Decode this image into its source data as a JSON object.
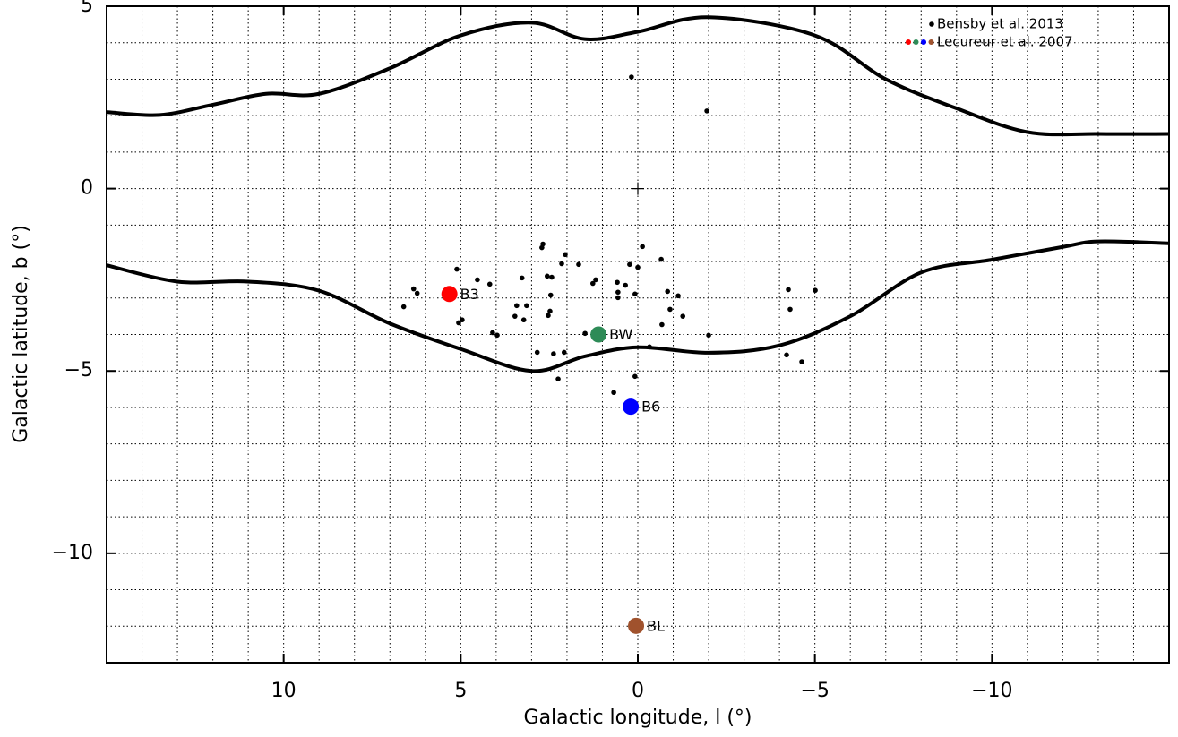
{
  "chart_data": {
    "type": "scatter",
    "xlabel": "Galactic longitude, l (°)",
    "ylabel": "Galactic latitude, b (°)",
    "xlim": [
      15,
      -15
    ],
    "ylim": [
      -13,
      5
    ],
    "xticks": [
      10,
      5,
      0,
      {
        "value": -5,
        "label": "−5"
      },
      {
        "value": -10,
        "label": "−10"
      }
    ],
    "yticks": [
      5,
      0,
      {
        "value": -5,
        "label": "−5"
      },
      {
        "value": -10,
        "label": "−10"
      }
    ],
    "xminor": 1,
    "yminor": 1,
    "grid": true,
    "legend": "upper right",
    "series": [
      {
        "name": "Bensby et al. 2013",
        "color": "#000000",
        "x": [
          0.18,
          -1.95,
          2.68,
          2.71,
          -0.13,
          2.05,
          2.15,
          1.67,
          0.23,
          0,
          -0.66,
          5.11,
          4.53,
          1.19,
          1.27,
          2.56,
          2.43,
          3.27,
          4.18,
          0.58,
          0.35,
          -0.84,
          6.33,
          6.23,
          2.46,
          0.56,
          0.56,
          0.08,
          -1.14,
          -4.25,
          -5.01,
          6.61,
          3.42,
          3.14,
          2.48,
          2.53,
          3.47,
          3.22,
          -0.91,
          -1.27,
          -4.3,
          4.96,
          5.06,
          4.1,
          3.97,
          1.49,
          -0.68,
          -2.0,
          -0.33,
          2.84,
          2.38,
          2.08,
          -4.2,
          -4.63,
          0.08,
          2.25,
          0.68
        ],
        "y": [
          3.06,
          2.13,
          -1.52,
          -1.62,
          -1.59,
          -1.81,
          -2.06,
          -2.08,
          -2.08,
          -2.16,
          -1.94,
          -2.21,
          -2.5,
          -2.5,
          -2.6,
          -2.4,
          -2.43,
          -2.45,
          -2.62,
          -2.57,
          -2.65,
          -2.82,
          -2.75,
          -2.87,
          -2.92,
          -2.84,
          -2.99,
          -2.89,
          -2.94,
          -2.77,
          -2.79,
          -3.24,
          -3.21,
          -3.21,
          -3.36,
          -3.48,
          -3.5,
          -3.6,
          -3.31,
          -3.5,
          -3.31,
          -3.6,
          -3.68,
          -3.95,
          -4.02,
          -3.97,
          -3.73,
          -4.02,
          -4.34,
          -4.49,
          -4.53,
          -4.49,
          -4.56,
          -4.75,
          -5.15,
          -5.22,
          -5.59
        ]
      },
      {
        "name": "Lecureur et al. 2007",
        "colors": [
          "#ff0000",
          "#2e8b57",
          "#0000ff",
          "#a0522d"
        ],
        "labels": [
          "B3",
          "BW",
          "B6",
          "BL"
        ],
        "x": [
          5.32,
          1.11,
          0.2,
          0.05
        ],
        "y": [
          -2.89,
          -4.0,
          -5.98,
          -11.99
        ]
      }
    ],
    "curves": [
      {
        "x": [
          15,
          13.5,
          12,
          10.5,
          9,
          7,
          5,
          3,
          1.5,
          0,
          -2,
          -5,
          -7,
          -9,
          -11,
          -13,
          -15
        ],
        "y": [
          2.1,
          2.02,
          2.3,
          2.6,
          2.6,
          3.3,
          4.2,
          4.55,
          4.1,
          4.3,
          4.7,
          4.2,
          3.0,
          2.2,
          1.55,
          1.5,
          1.5
        ]
      },
      {
        "x": [
          15,
          13,
          11,
          9,
          7,
          5,
          3,
          1.5,
          0,
          -2,
          -4,
          -6,
          -8,
          -10,
          -12,
          -13,
          -15
        ],
        "y": [
          -2.1,
          -2.55,
          -2.55,
          -2.8,
          -3.7,
          -4.4,
          -5.0,
          -4.6,
          -4.35,
          -4.5,
          -4.3,
          -3.5,
          -2.3,
          -1.95,
          -1.6,
          -1.45,
          -1.5
        ]
      }
    ]
  }
}
